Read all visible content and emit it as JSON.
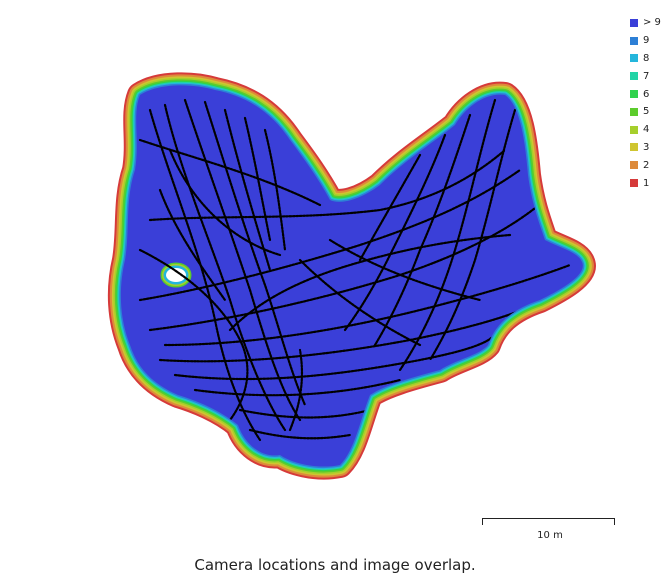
{
  "chart_data": {
    "type": "heatmap",
    "title": "Camera locations and image overlap.",
    "legend_position": "top-right",
    "legend": [
      {
        "label": "> 9",
        "color": "#3a3fd8"
      },
      {
        "label": "9",
        "color": "#2d7fd6"
      },
      {
        "label": "8",
        "color": "#24b6dc"
      },
      {
        "label": "7",
        "color": "#22d4a6"
      },
      {
        "label": "6",
        "color": "#2fd24d"
      },
      {
        "label": "5",
        "color": "#5ccc2c"
      },
      {
        "label": "4",
        "color": "#a6cf2c"
      },
      {
        "label": "3",
        "color": "#cfc530"
      },
      {
        "label": "2",
        "color": "#dd8a3a"
      },
      {
        "label": "1",
        "color": "#d63a3a"
      }
    ],
    "scale": {
      "label": "10 m",
      "value": 10,
      "unit": "m"
    },
    "series": [
      {
        "kind": "camera-locations",
        "color": "#000000"
      }
    ]
  },
  "caption": "Camera locations and image overlap."
}
